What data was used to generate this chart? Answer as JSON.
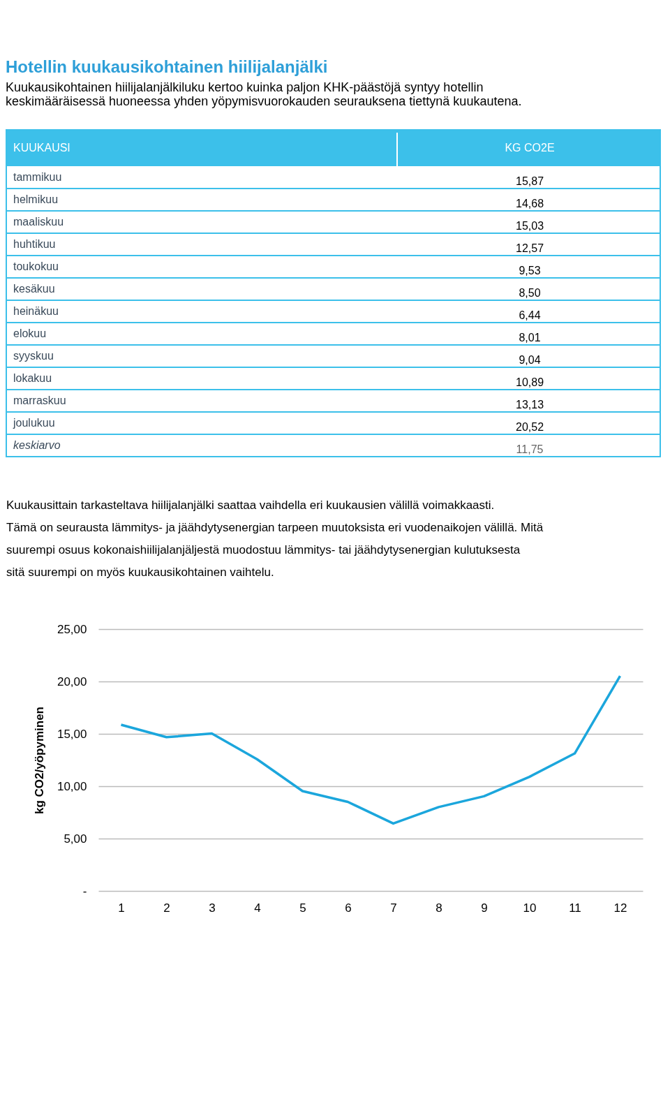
{
  "chart_data": [
    {
      "type": "other",
      "title": "Hotellin kuukausikohtainen hiilijalanjälki",
      "subtitle": "Kuukausikohtainen hiilijalanjälkiluku kertoo kuinka paljon KHK-päästöjä syntyy hotellin keskimääräisessä huoneessa yhden yöpymisvuorokauden seurauksena tiettynä kuukautena.",
      "xlabel": "KUUKAUSI",
      "ylabel": "KG CO2E",
      "categories": [
        "tammikuu",
        "helmikuu",
        "maaliskuu",
        "huhtikuu",
        "toukokuu",
        "kesäkuu",
        "heinäkuu",
        "elokuu",
        "syyskuu",
        "lokakuu",
        "marraskuu",
        "joulukuu",
        "keskiarvo"
      ],
      "value_labels": [
        "15,87",
        "14,68",
        "15,03",
        "12,57",
        "9,53",
        "8,50",
        "6,44",
        "8,01",
        "9,04",
        "10,89",
        "13,13",
        "20,52",
        "11,75"
      ],
      "annotations": [
        "Kuukausittain tarkasteltava hiilijalanjälki saattaa vaihdella eri kuukausien välillä voimakkaasti. Tämä on seurausta lämmitys- ja jäähdytysenergian tarpeen muutoksista eri vuodenaikojen välillä. Mitä suurempi osuus kokonaishiilijalanjäljestä muodostuu lämmitys- tai jäähdytysenergian kulutuksesta sitä suurempi on myös kuukausikohtainen vaihtelu."
      ]
    },
    {
      "type": "line",
      "ylabel": "kg CO2/yöpyminen",
      "x": [
        1,
        2,
        3,
        4,
        5,
        6,
        7,
        8,
        9,
        10,
        11,
        12
      ],
      "xlim": [
        0.5,
        12.5
      ],
      "xticks": [
        1,
        2,
        3,
        4,
        5,
        6,
        7,
        8,
        9,
        10,
        11,
        12
      ],
      "series": [
        {
          "color": "#1ba6dc",
          "values": [
            15.87,
            14.68,
            15.03,
            12.57,
            9.53,
            8.5,
            6.44,
            8.01,
            9.04,
            10.89,
            13.13,
            20.52
          ]
        }
      ],
      "ylim": [
        0,
        25
      ],
      "yticks": [
        {
          "value": 0,
          "label": "-"
        },
        {
          "value": 5,
          "label": "5,00"
        },
        {
          "value": 10,
          "label": "10,00"
        },
        {
          "value": 15,
          "label": "15,00"
        },
        {
          "value": 20,
          "label": "20,00"
        },
        {
          "value": 25,
          "label": "25,00"
        }
      ],
      "grid": "y",
      "marker": "none",
      "line_style": "solid"
    }
  ]
}
